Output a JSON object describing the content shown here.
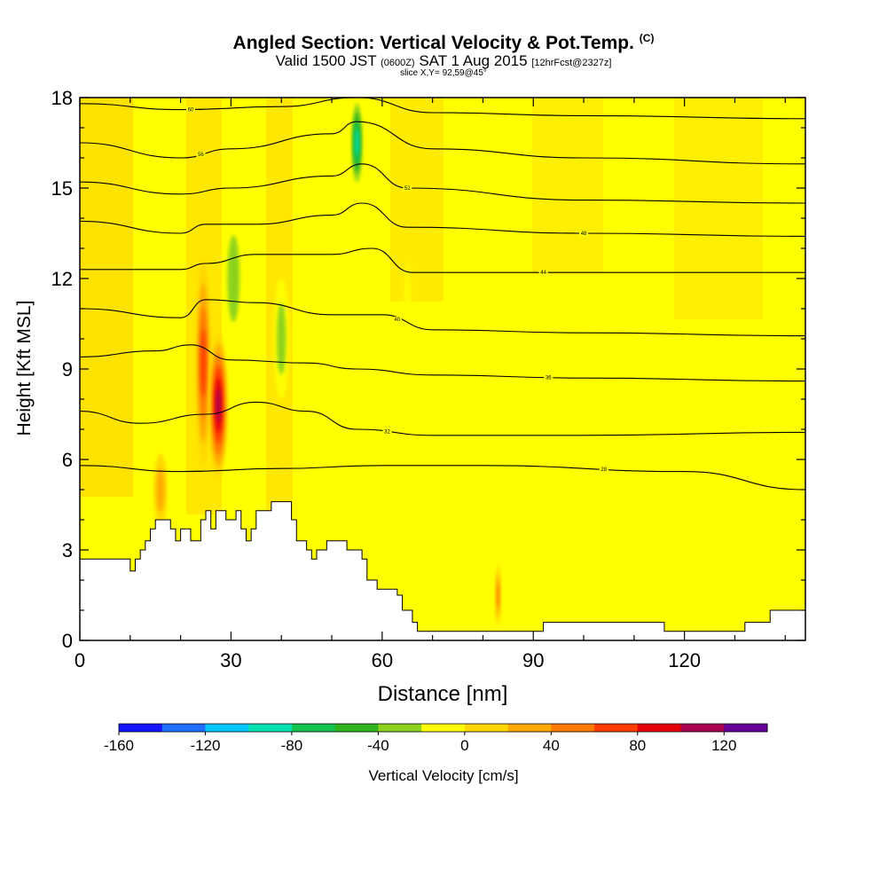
{
  "header": {
    "title": "Angled Section: Vertical Velocity & Pot.Temp.",
    "title_unit": "(C)",
    "valid_a": "Valid 1500 JST",
    "valid_z": "(0600Z)",
    "valid_b": "SAT 1 Aug 2015",
    "fcst": "[12hrFcst@2327z]",
    "slice": "slice X,Y= 92,59@45°"
  },
  "chart_data": {
    "type": "heatmap",
    "xlabel": "Distance [nm]",
    "ylabel": "Height [Kft MSL]",
    "xlim": [
      0,
      144
    ],
    "ylim": [
      0,
      18
    ],
    "xticks": [
      0,
      30,
      60,
      90,
      120
    ],
    "yticks": [
      0,
      3,
      6,
      9,
      12,
      15,
      18
    ],
    "colorbar": {
      "label": "Vertical Velocity [cm/s]",
      "range": [
        -160,
        140
      ],
      "step": 20,
      "ticks": [
        -160,
        -120,
        -80,
        -40,
        0,
        40,
        80,
        120
      ],
      "colors": [
        "#1414ff",
        "#1e6eff",
        "#00c8ff",
        "#00e1b4",
        "#14c350",
        "#2db41e",
        "#8cd21e",
        "#ffff00",
        "#ffd700",
        "#ffaa00",
        "#ff7a00",
        "#ff3c00",
        "#e6000a",
        "#aa0050",
        "#640096"
      ]
    },
    "terrain": [
      [
        0,
        2.7
      ],
      [
        6,
        2.7
      ],
      [
        10,
        2.3
      ],
      [
        11,
        2.7
      ],
      [
        12,
        3.0
      ],
      [
        13,
        3.3
      ],
      [
        14,
        3.7
      ],
      [
        15,
        4.0
      ],
      [
        18,
        3.7
      ],
      [
        19,
        3.3
      ],
      [
        20,
        3.7
      ],
      [
        22,
        3.3
      ],
      [
        24,
        4.0
      ],
      [
        25,
        4.3
      ],
      [
        26,
        3.7
      ],
      [
        27,
        4.3
      ],
      [
        29,
        4.0
      ],
      [
        31,
        4.3
      ],
      [
        32,
        3.7
      ],
      [
        33,
        3.3
      ],
      [
        34,
        3.7
      ],
      [
        35,
        4.3
      ],
      [
        37,
        4.3
      ],
      [
        38,
        4.6
      ],
      [
        41,
        4.6
      ],
      [
        42,
        4.0
      ],
      [
        43,
        3.3
      ],
      [
        45,
        3.0
      ],
      [
        46,
        2.7
      ],
      [
        47,
        3.0
      ],
      [
        49,
        3.3
      ],
      [
        52,
        3.3
      ],
      [
        53,
        3.0
      ],
      [
        56,
        2.7
      ],
      [
        57,
        2.0
      ],
      [
        59,
        1.7
      ],
      [
        63,
        1.5
      ],
      [
        64,
        1.0
      ],
      [
        66,
        0.6
      ],
      [
        67,
        0.3
      ],
      [
        68,
        0.3
      ],
      [
        91,
        0.3
      ],
      [
        92,
        0.6
      ],
      [
        115,
        0.6
      ],
      [
        116,
        0.3
      ],
      [
        130,
        0.3
      ],
      [
        132,
        0.6
      ],
      [
        137,
        1.0
      ],
      [
        144,
        1.0
      ]
    ],
    "updrafts": [
      {
        "x": 24.5,
        "y": 9.2,
        "w": 1.5,
        "h": 3.4,
        "value": 80
      },
      {
        "x": 27.5,
        "y": 7.8,
        "w": 1.8,
        "h": 2.4,
        "value": 120
      },
      {
        "x": 16.0,
        "y": 5.0,
        "w": 1.3,
        "h": 1.2,
        "value": 40
      },
      {
        "x": 83.0,
        "y": 1.5,
        "w": 0.5,
        "h": 1.0,
        "value": 60
      }
    ],
    "downdrafts": [
      {
        "x": 30.5,
        "y": 12.0,
        "w": 2.0,
        "h": 2.4,
        "value": -40
      },
      {
        "x": 40.0,
        "y": 10.0,
        "w": 1.5,
        "h": 2.0,
        "value": -40
      },
      {
        "x": 55.0,
        "y": 16.5,
        "w": 1.2,
        "h": 1.6,
        "value": -100
      },
      {
        "x": 13.0,
        "y": 4.5,
        "w": 0.8,
        "h": 1.5,
        "value": -20
      },
      {
        "x": 73.5,
        "y": 12.5,
        "w": 1.0,
        "h": 2.5,
        "value": -20
      },
      {
        "x": 65.0,
        "y": 10.5,
        "w": 0.6,
        "h": 2.0,
        "value": -20
      }
    ],
    "isentropes": [
      {
        "theta": 60,
        "label_at": 22,
        "points": [
          [
            0,
            17.8
          ],
          [
            20,
            17.6
          ],
          [
            40,
            17.7
          ],
          [
            55,
            18.0
          ],
          [
            70,
            17.5
          ],
          [
            100,
            17.4
          ],
          [
            144,
            17.3
          ]
        ]
      },
      {
        "theta": 56,
        "label_at": 24,
        "points": [
          [
            0,
            16.5
          ],
          [
            20,
            16.0
          ],
          [
            30,
            16.3
          ],
          [
            50,
            16.8
          ],
          [
            55,
            17.2
          ],
          [
            70,
            16.3
          ],
          [
            100,
            16.0
          ],
          [
            144,
            15.8
          ]
        ]
      },
      {
        "theta": 52,
        "label_at": 65,
        "points": [
          [
            0,
            15.2
          ],
          [
            20,
            14.8
          ],
          [
            30,
            15.0
          ],
          [
            50,
            15.4
          ],
          [
            56,
            15.8
          ],
          [
            65,
            15.0
          ],
          [
            100,
            14.6
          ],
          [
            144,
            14.5
          ]
        ]
      },
      {
        "theta": 48,
        "label_at": 100,
        "points": [
          [
            0,
            13.9
          ],
          [
            20,
            13.5
          ],
          [
            25,
            13.8
          ],
          [
            35,
            13.8
          ],
          [
            50,
            14.1
          ],
          [
            56,
            14.5
          ],
          [
            65,
            13.7
          ],
          [
            100,
            13.5
          ],
          [
            144,
            13.4
          ]
        ]
      },
      {
        "theta": 44,
        "label_at": 92,
        "points": [
          [
            0,
            12.3
          ],
          [
            20,
            12.3
          ],
          [
            25,
            12.5
          ],
          [
            35,
            12.8
          ],
          [
            50,
            12.8
          ],
          [
            58,
            13.0
          ],
          [
            66,
            12.2
          ],
          [
            100,
            12.2
          ],
          [
            144,
            12.2
          ]
        ]
      },
      {
        "theta": 40,
        "label_at": 63,
        "points": [
          [
            0,
            11.0
          ],
          [
            20,
            10.7
          ],
          [
            25,
            11.3
          ],
          [
            35,
            11.2
          ],
          [
            50,
            10.8
          ],
          [
            60,
            10.8
          ],
          [
            70,
            10.3
          ],
          [
            100,
            10.2
          ],
          [
            144,
            10.1
          ]
        ]
      },
      {
        "theta": 36,
        "label_at": 93,
        "points": [
          [
            0,
            9.4
          ],
          [
            15,
            9.6
          ],
          [
            22,
            9.8
          ],
          [
            30,
            9.3
          ],
          [
            45,
            9.2
          ],
          [
            55,
            9.0
          ],
          [
            70,
            8.8
          ],
          [
            100,
            8.7
          ],
          [
            144,
            8.6
          ]
        ]
      },
      {
        "theta": 32,
        "label_at": 61,
        "points": [
          [
            0,
            7.6
          ],
          [
            12,
            7.2
          ],
          [
            25,
            7.5
          ],
          [
            35,
            7.9
          ],
          [
            45,
            7.6
          ],
          [
            55,
            7.0
          ],
          [
            70,
            6.8
          ],
          [
            100,
            6.8
          ],
          [
            144,
            6.9
          ]
        ]
      },
      {
        "theta": 28,
        "label_at": 104,
        "points": [
          [
            0,
            5.8
          ],
          [
            20,
            5.6
          ],
          [
            40,
            5.7
          ],
          [
            60,
            5.8
          ],
          [
            80,
            5.8
          ],
          [
            120,
            5.6
          ],
          [
            144,
            5.0
          ]
        ]
      }
    ]
  }
}
